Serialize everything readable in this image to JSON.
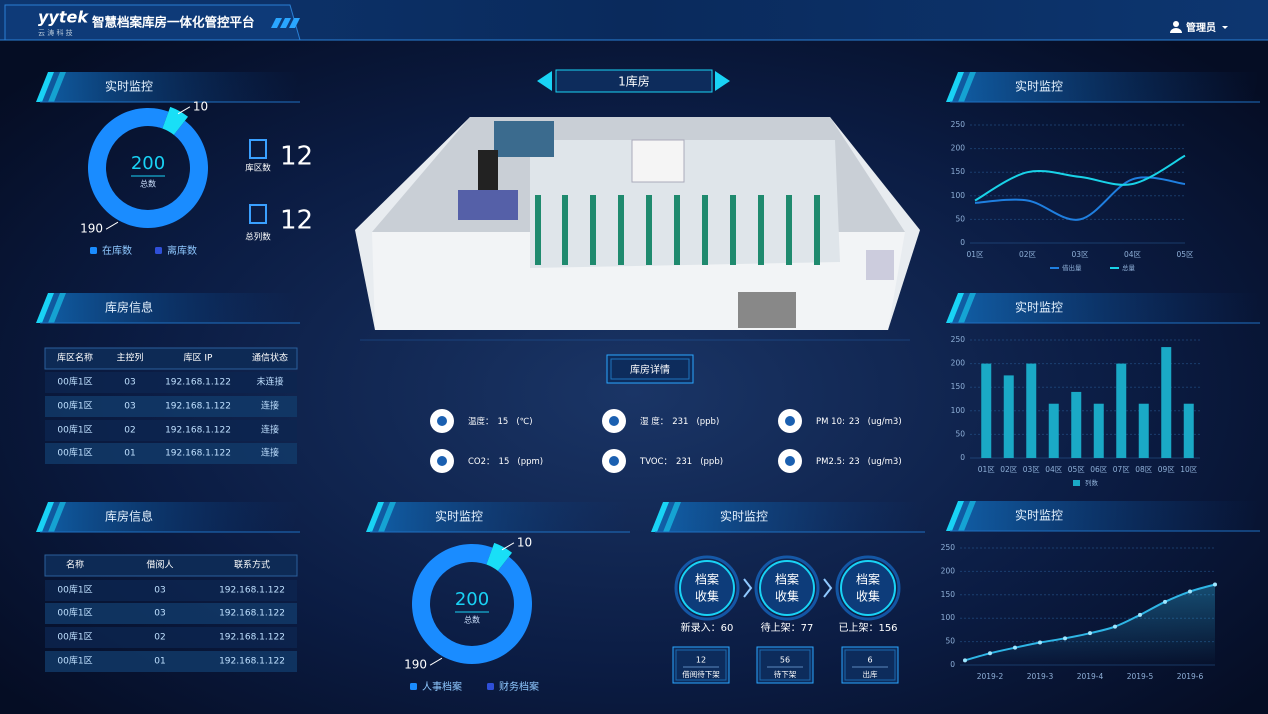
{
  "header": {
    "logo": "yytek",
    "logo_sub": "云 涛 科 技",
    "title": "智慧档案库房一体化管控平台",
    "user": "管理员"
  },
  "left_donut": {
    "title": "实时监控",
    "type": "pie",
    "values": [
      190,
      10
    ],
    "colors": [
      "#1a8cff",
      "#19dff7"
    ],
    "legend": [
      "在库数",
      "离库数"
    ],
    "total": 200,
    "total_label": "总数"
  },
  "stats": [
    {
      "label": "库区数",
      "value": 12
    },
    {
      "label": "总列数",
      "value": 12
    }
  ],
  "room_table": {
    "title": "库房信息",
    "headers": [
      "库区名称",
      "主控列",
      "库区 IP",
      "通信状态"
    ],
    "rows": [
      [
        "00库1区",
        "03",
        "192.168.1.122",
        "未连接"
      ],
      [
        "00库1区",
        "03",
        "192.168.1.122",
        "连接"
      ],
      [
        "00库1区",
        "02",
        "192.168.1.122",
        "连接"
      ],
      [
        "00库1区",
        "01",
        "192.168.1.122",
        "连接"
      ]
    ]
  },
  "borrow_table": {
    "title": "库房信息",
    "headers": [
      "名称",
      "借阅人",
      "联系方式"
    ],
    "rows": [
      [
        "00库1区",
        "03",
        "192.168.1.122"
      ],
      [
        "00库1区",
        "03",
        "192.168.1.122"
      ],
      [
        "00库1区",
        "02",
        "192.168.1.122"
      ],
      [
        "00库1区",
        "01",
        "192.168.1.122"
      ]
    ]
  },
  "room": {
    "name": "1库房",
    "button": "库房详情"
  },
  "sensors": [
    {
      "label": "温度：",
      "value": 15,
      "unit": "(℃)"
    },
    {
      "label": "湿 度：",
      "value": 231,
      "unit": "(ppb)"
    },
    {
      "label": "PM 10:",
      "value": 23,
      "unit": "(ug/m3)"
    },
    {
      "label": "CO2：",
      "value": 15,
      "unit": "(ppm)"
    },
    {
      "label": "TVOC：",
      "value": 231,
      "unit": "(ppb)"
    },
    {
      "label": "PM2.5:",
      "value": 23,
      "unit": "(ug/m3)"
    }
  ],
  "mid_donut": {
    "title": "实时监控",
    "type": "pie",
    "values": [
      190,
      10
    ],
    "colors": [
      "#1a8cff",
      "#19dff7"
    ],
    "legend": [
      "人事档案",
      "财务档案"
    ],
    "total": 200,
    "total_label": "总数"
  },
  "flow": {
    "title": "实时监控",
    "steps": [
      {
        "lines": [
          "档案",
          "收集"
        ],
        "label": "新录入：",
        "value": 60
      },
      {
        "lines": [
          "档案",
          "收集"
        ],
        "label": "待上架：",
        "value": 77
      },
      {
        "lines": [
          "档案",
          "收集"
        ],
        "label": "已上架：",
        "value": 156
      }
    ],
    "boxes": [
      {
        "value": 12,
        "label": "借阅待下架"
      },
      {
        "value": 56,
        "label": "待下架"
      },
      {
        "value": 6,
        "label": "出库"
      }
    ]
  },
  "line_chart": {
    "title": "实时监控",
    "type": "line",
    "categories": [
      "01区",
      "02区",
      "03区",
      "04区",
      "05区"
    ],
    "ylim": [
      0,
      250
    ],
    "yticks": [
      0,
      50,
      100,
      150,
      200,
      250
    ],
    "series": [
      {
        "name": "借出量",
        "color": "#1f7fe0",
        "values": [
          85,
          90,
          50,
          135,
          125
        ]
      },
      {
        "name": "总量",
        "color": "#19d3e8",
        "values": [
          90,
          150,
          140,
          125,
          185
        ]
      }
    ]
  },
  "bar_chart": {
    "title": "实时监控",
    "type": "bar",
    "categories": [
      "01区",
      "02区",
      "03区",
      "04区",
      "05区",
      "06区",
      "07区",
      "08区",
      "09区",
      "10区"
    ],
    "ylim": [
      0,
      250
    ],
    "yticks": [
      0,
      50,
      100,
      150,
      200,
      250
    ],
    "series": [
      {
        "name": "列数",
        "color": "#1aa9c6",
        "values": [
          200,
          175,
          200,
          115,
          140,
          115,
          200,
          115,
          235,
          115
        ]
      }
    ]
  },
  "trend_chart": {
    "title": "实时监控",
    "type": "line",
    "categories": [
      null,
      "2019-2",
      null,
      "2019-3",
      null,
      "2019-4",
      null,
      "2019-5",
      null,
      "2019-6",
      null
    ],
    "ylim": [
      0,
      250
    ],
    "yticks": [
      0,
      50,
      100,
      150,
      200,
      250
    ],
    "series": [
      {
        "color": "#2fb6e6",
        "values": [
          10,
          25,
          37,
          48,
          57,
          68,
          82,
          107,
          135,
          157,
          172
        ]
      }
    ]
  }
}
